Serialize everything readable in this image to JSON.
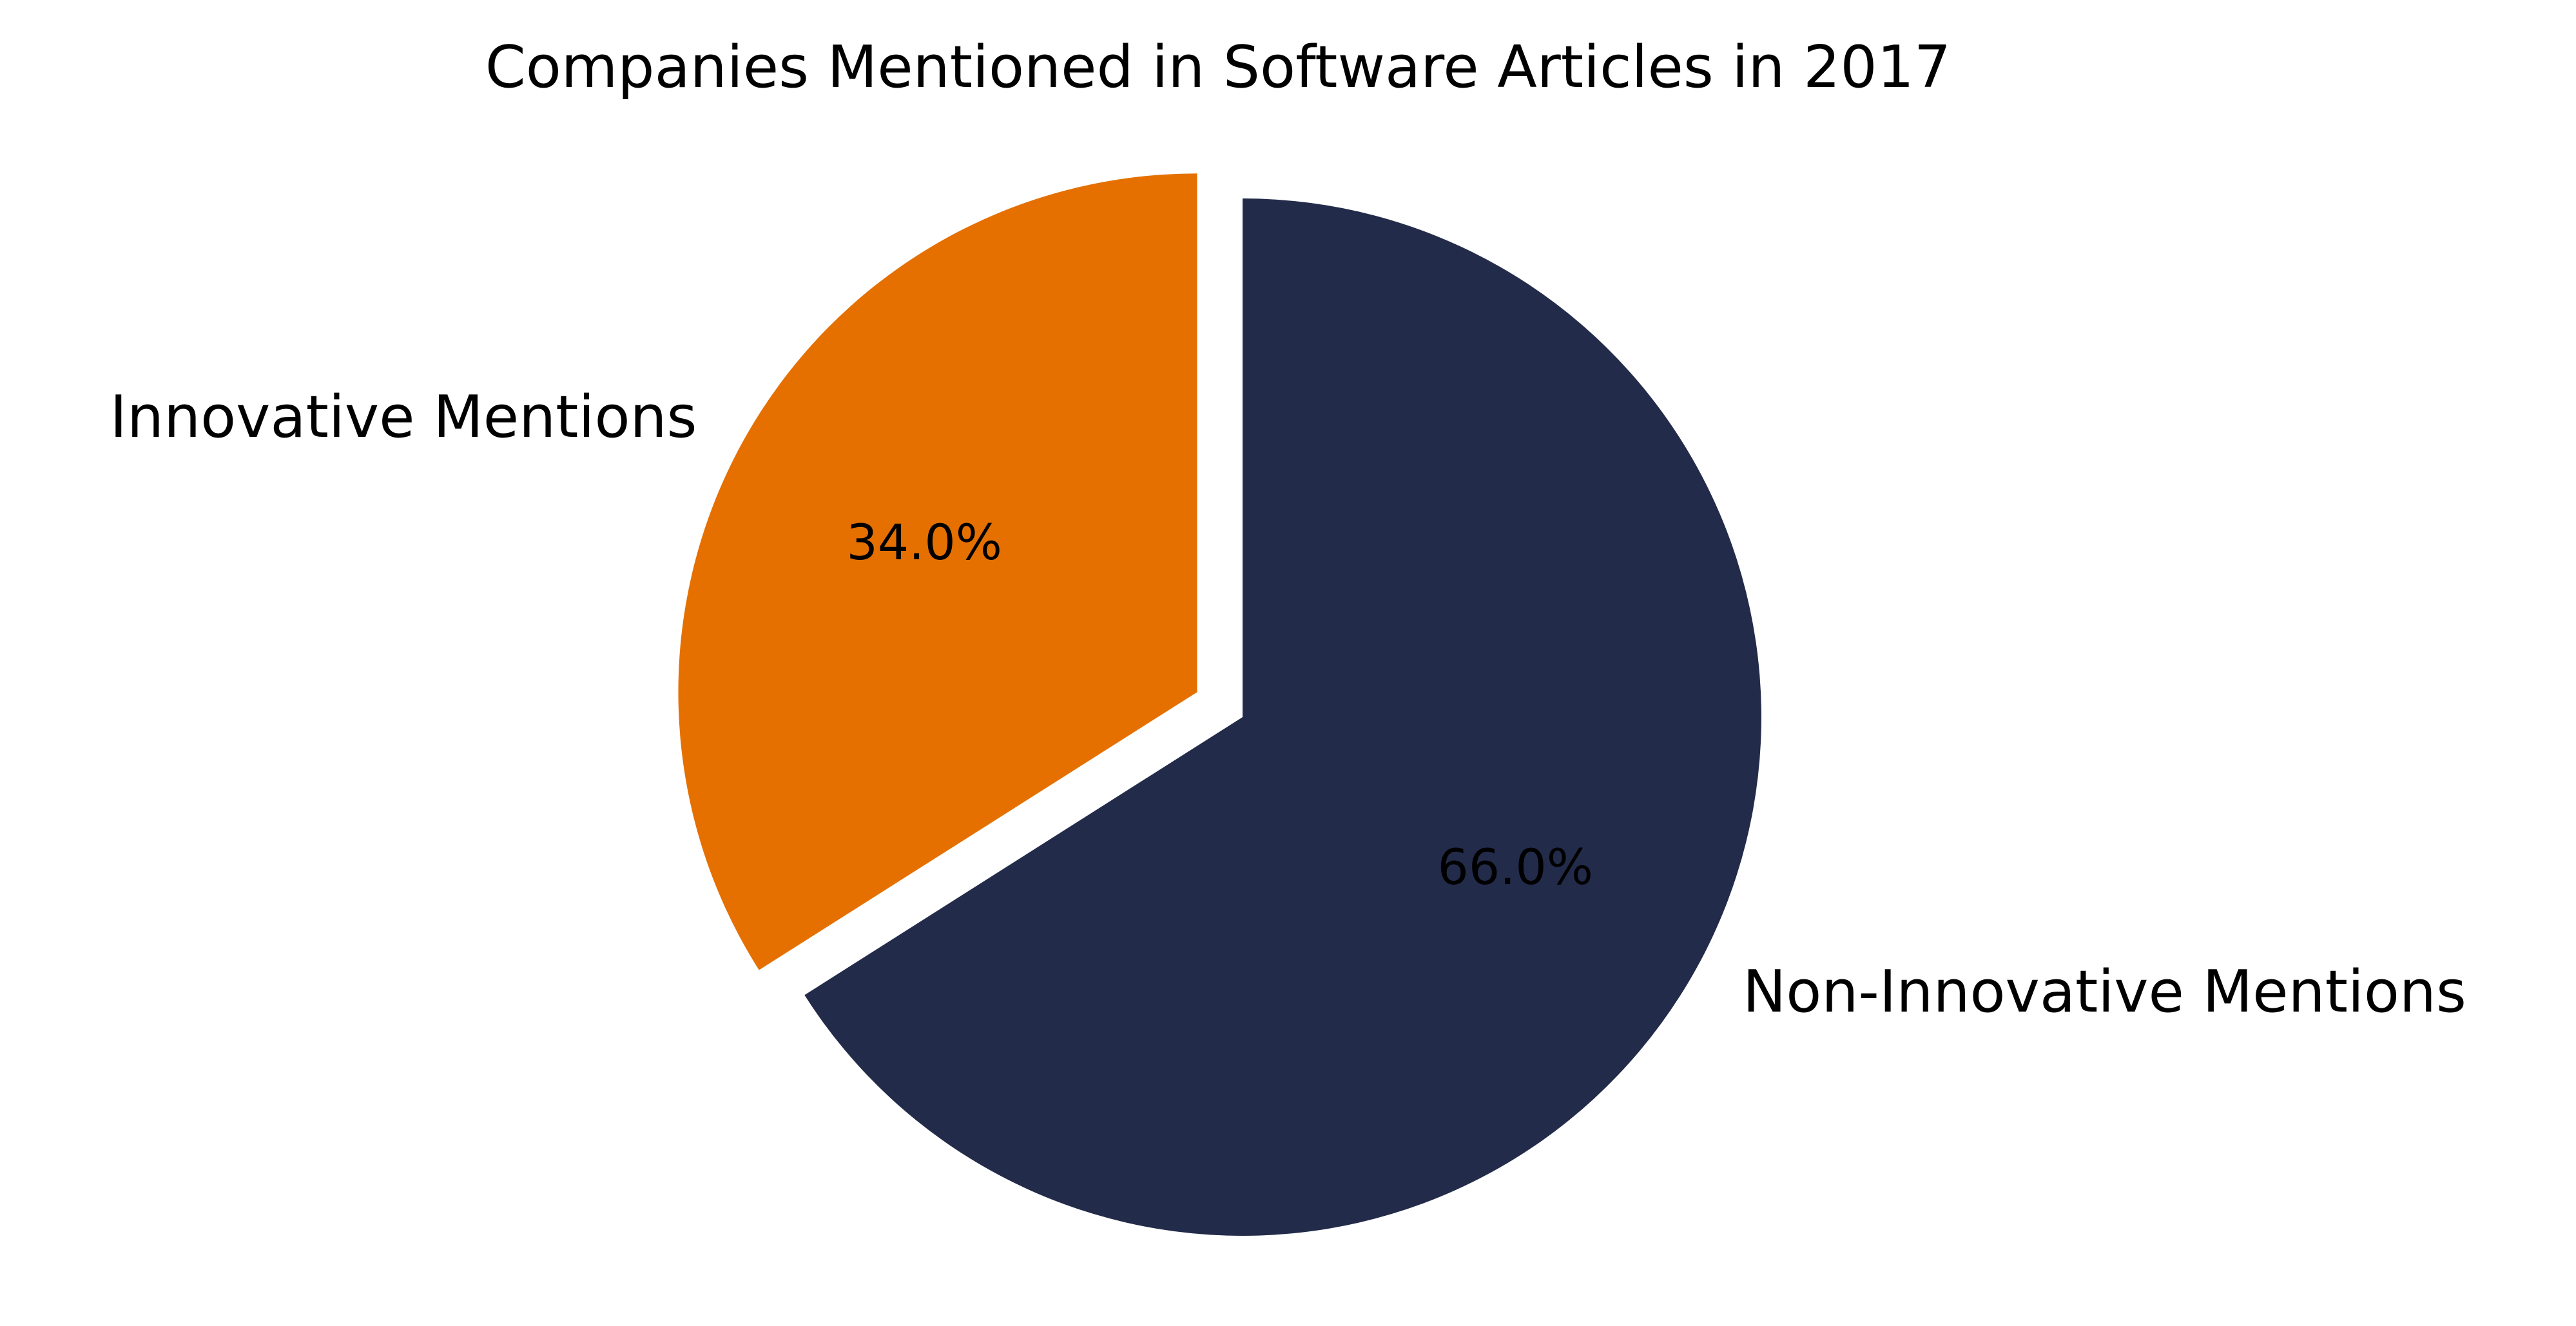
{
  "chart_data": {
    "type": "pie",
    "title": "Companies Mentioned in Software Articles in 2017",
    "slices": [
      {
        "label": "Innovative Mentions",
        "value": 34.0,
        "value_label": "34.0%",
        "color": "#e57000",
        "exploded": true
      },
      {
        "label": "Non-Innovative Mentions",
        "value": 66.0,
        "value_label": "66.0%",
        "color": "#232b4a",
        "exploded": false
      }
    ],
    "start_angle_deg": 90,
    "direction": "counterclockwise"
  }
}
